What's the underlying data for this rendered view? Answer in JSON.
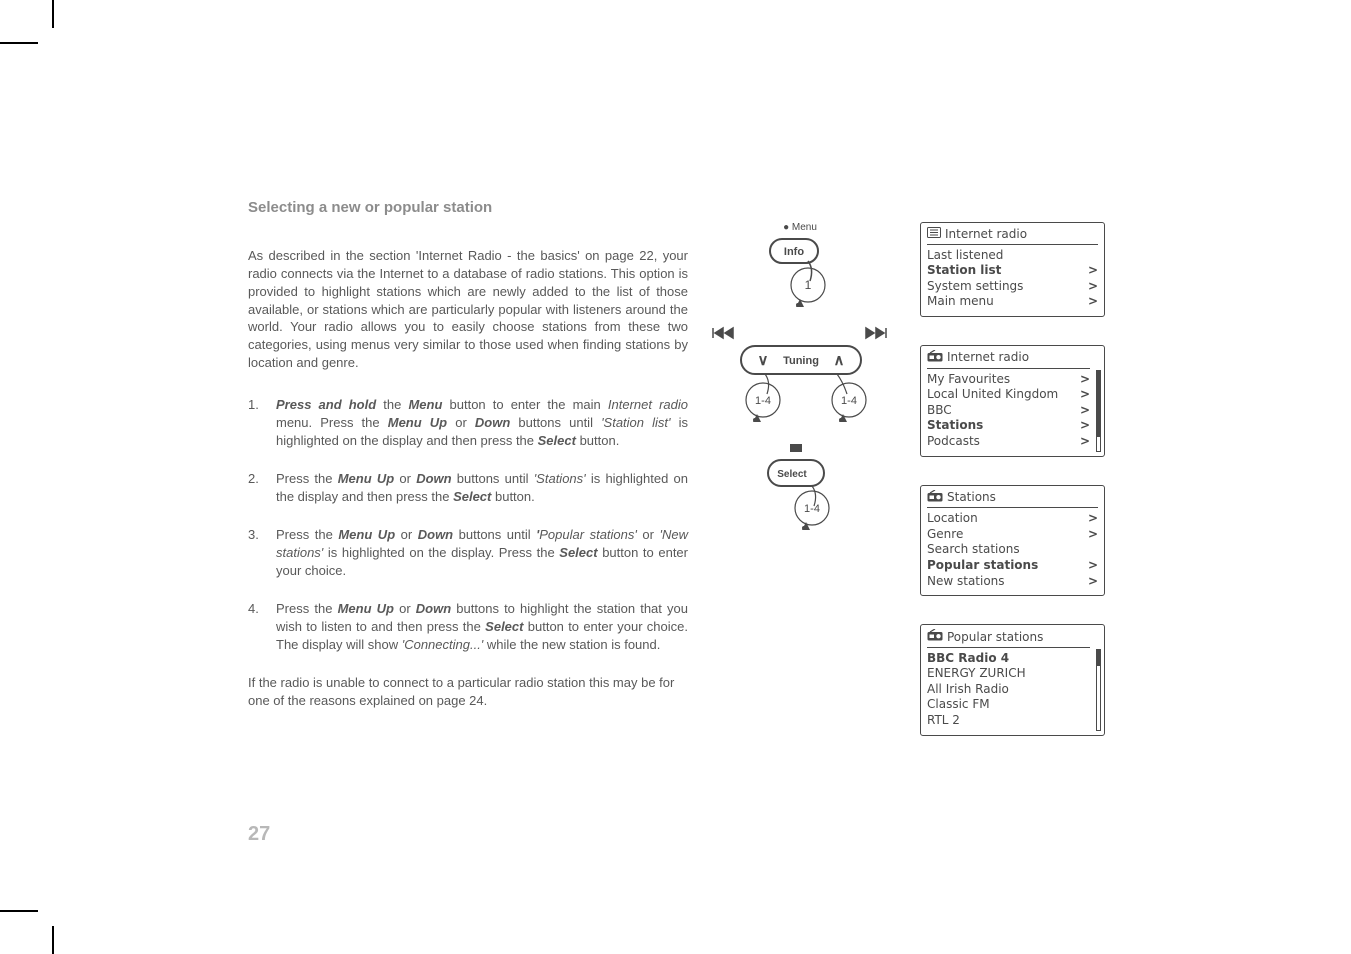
{
  "title": "Selecting a new or popular station",
  "intro": "As described in the section 'Internet Radio - the basics' on page 22, your radio connects via the Internet to a database of radio stations.  This option is provided to highlight stations which are newly added to the list of those available, or stations which are particularly popular with listeners around the world.  Your radio allows you to easily choose stations from these two categories, using menus very similar to those used when finding stations by location and genre.",
  "steps": [
    {
      "num": "1.",
      "parts": [
        {
          "t": "bi",
          "v": "Press and hold"
        },
        {
          "t": "p",
          "v": " the "
        },
        {
          "t": "bi",
          "v": "Menu"
        },
        {
          "t": "p",
          "v": " button to enter the main "
        },
        {
          "t": "it",
          "v": "Internet radio"
        },
        {
          "t": "p",
          "v": " menu. Press the "
        },
        {
          "t": "bi",
          "v": "Menu Up"
        },
        {
          "t": "p",
          "v": " or "
        },
        {
          "t": "bi",
          "v": "Down"
        },
        {
          "t": "p",
          "v": " buttons until "
        },
        {
          "t": "it",
          "v": "'Station list'"
        },
        {
          "t": "p",
          "v": " is highlighted on the display and then press the "
        },
        {
          "t": "bi",
          "v": "Select"
        },
        {
          "t": "p",
          "v": " button."
        }
      ]
    },
    {
      "num": "2.",
      "parts": [
        {
          "t": "p",
          "v": "Press the "
        },
        {
          "t": "bi",
          "v": "Menu Up"
        },
        {
          "t": "p",
          "v": " or "
        },
        {
          "t": "bi",
          "v": "Down"
        },
        {
          "t": "p",
          "v": " buttons until "
        },
        {
          "t": "it",
          "v": "'Stations'"
        },
        {
          "t": "p",
          "v": " is highlighted on the display and then press the "
        },
        {
          "t": "bi",
          "v": "Select"
        },
        {
          "t": "p",
          "v": " button."
        }
      ]
    },
    {
      "num": "3.",
      "parts": [
        {
          "t": "p",
          "v": "Press the "
        },
        {
          "t": "bi",
          "v": "Menu Up"
        },
        {
          "t": "p",
          "v": "  or "
        },
        {
          "t": "bi",
          "v": "Down"
        },
        {
          "t": "p",
          "v": " buttons until "
        },
        {
          "t": "bi",
          "v": "'"
        },
        {
          "t": "it",
          "v": "Popular stations'"
        },
        {
          "t": "p",
          "v": " or "
        },
        {
          "t": "it",
          "v": "'New stations'"
        },
        {
          "t": "p",
          "v": " is highlighted on the display. Press the "
        },
        {
          "t": "bi",
          "v": "Select"
        },
        {
          "t": "p",
          "v": " button to enter your choice."
        }
      ]
    },
    {
      "num": "4.",
      "parts": [
        {
          "t": "p",
          "v": "Press the "
        },
        {
          "t": "bi",
          "v": "Menu Up"
        },
        {
          "t": "p",
          "v": " or "
        },
        {
          "t": "bi",
          "v": "Down"
        },
        {
          "t": "p",
          "v": " buttons to highlight the station that you wish to listen to  and then press the "
        },
        {
          "t": "bi",
          "v": "Select"
        },
        {
          "t": "p",
          "v": " button to enter your choice.  The display will show "
        },
        {
          "t": "it",
          "v": "'Connecting...'"
        },
        {
          "t": "p",
          "v": " while the new station is found."
        }
      ]
    }
  ],
  "outro": "If the radio is unable to connect to a particular radio station this may be for one of the reasons explained on page 24.",
  "page_number": "27",
  "buttons": {
    "menu_dot": "Menu",
    "info": "Info",
    "tuning": "Tuning",
    "select": "Select",
    "range": "1-4",
    "one": "1"
  },
  "screen1": {
    "title": "Internet radio",
    "rows": [
      {
        "label": "Last listened",
        "arrow": "",
        "sel": false
      },
      {
        "label": "Station list",
        "arrow": ">",
        "sel": true
      },
      {
        "label": "System settings",
        "arrow": ">",
        "sel": false
      },
      {
        "label": "Main menu",
        "arrow": ">",
        "sel": false
      }
    ]
  },
  "screen2": {
    "title": "Internet radio",
    "rows": [
      {
        "label": "My Favourites",
        "arrow": ">",
        "sel": false
      },
      {
        "label": "Local United Kingdom",
        "arrow": ">",
        "sel": false
      },
      {
        "label": "BBC",
        "arrow": ">",
        "sel": false
      },
      {
        "label": "Stations",
        "arrow": ">",
        "sel": true
      },
      {
        "label": "Podcasts",
        "arrow": ">",
        "sel": false
      }
    ],
    "thumb_top": 0,
    "thumb_height": 66
  },
  "screen3": {
    "title": "Stations",
    "rows": [
      {
        "label": "Location",
        "arrow": ">",
        "sel": false
      },
      {
        "label": "Genre",
        "arrow": ">",
        "sel": false
      },
      {
        "label": "Search stations",
        "arrow": "",
        "sel": false
      },
      {
        "label": "Popular stations",
        "arrow": ">",
        "sel": true
      },
      {
        "label": "New stations",
        "arrow": ">",
        "sel": false
      }
    ]
  },
  "screen4": {
    "title": "Popular stations",
    "rows": [
      {
        "label": "BBC Radio 4",
        "arrow": "",
        "sel": true
      },
      {
        "label": "ENERGY ZURICH",
        "arrow": "",
        "sel": false
      },
      {
        "label": "All Irish Radio",
        "arrow": "",
        "sel": false
      },
      {
        "label": "Classic FM",
        "arrow": "",
        "sel": false
      },
      {
        "label": "RTL 2",
        "arrow": "",
        "sel": false
      }
    ],
    "thumb_top": 0,
    "thumb_height": 16
  }
}
